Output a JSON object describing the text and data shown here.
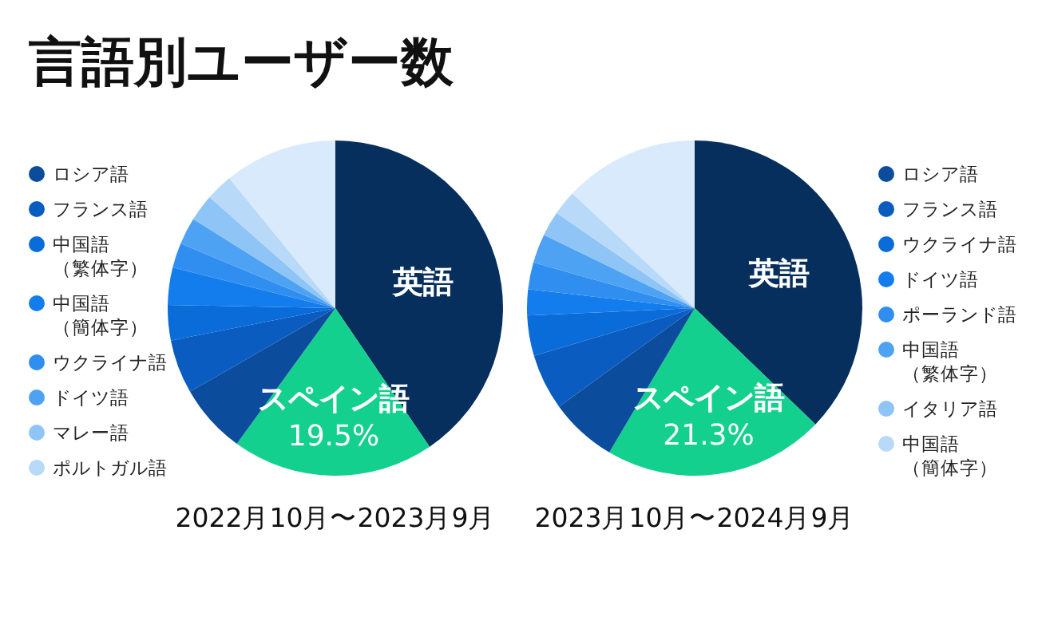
{
  "chart_data": [
    {
      "type": "pie",
      "title": "言語別ユーザー数",
      "xlabel": "2022月10月〜2023月9月",
      "legend": "left",
      "categories": [
        "英語",
        "スペイン語",
        "ロシア語",
        "フランス語",
        "中国語（繁体字）",
        "中国語（簡体字）",
        "ウクライナ語",
        "ドイツ語",
        "マレー語",
        "ポルトガル語",
        null
      ],
      "values": [
        40.5,
        19.5,
        6.7,
        5.2,
        3.4,
        3.6,
        2.4,
        2.6,
        2.6,
        2.6,
        10.9
      ],
      "value_labels": [
        null,
        "19.5%",
        null,
        null,
        null,
        null,
        null,
        null,
        null,
        null,
        null
      ],
      "colors": [
        "#062f5e",
        "#14d08f",
        "#0b4c9c",
        "#0a5cc0",
        "#0a6cd8",
        "#137ded",
        "#2f8ef0",
        "#4da2f3",
        "#8ec4f6",
        "#b8d9f8",
        "#d9eafc"
      ]
    },
    {
      "type": "pie",
      "xlabel": "2023月10月〜2024月9月",
      "legend": "right",
      "categories": [
        "英語",
        "スペイン語",
        "ロシア語",
        "フランス語",
        "ウクライナ語",
        "ドイツ語",
        "ポーランド語",
        "中国語（繁体字）",
        "イタリア語",
        "中国語（簡体字）",
        null
      ],
      "values": [
        37.2,
        21.3,
        6.5,
        5.4,
        3.9,
        2.5,
        2.6,
        2.8,
        2.4,
        2.4,
        13.0
      ],
      "value_labels": [
        null,
        "21.3%",
        null,
        null,
        null,
        null,
        null,
        null,
        null,
        null,
        null
      ],
      "colors": [
        "#062f5e",
        "#14d08f",
        "#0b4c9c",
        "#0a5cc0",
        "#0a6cd8",
        "#137ded",
        "#2f8ef0",
        "#4da2f3",
        "#8ec4f6",
        "#b8d9f8",
        "#d9eafc"
      ]
    }
  ]
}
